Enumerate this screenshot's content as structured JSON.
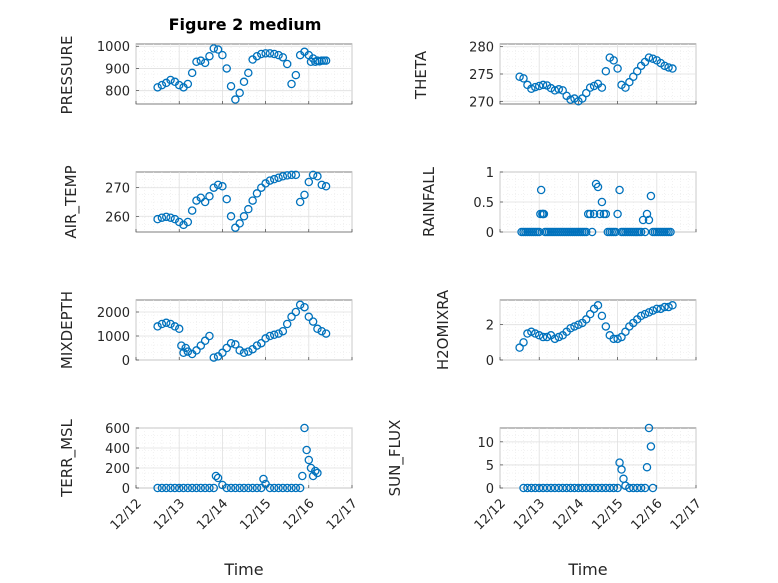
{
  "figure_title": "Figure 2 medium",
  "marker_color": "#0072BD",
  "x_axis": {
    "label": "Time",
    "ticks": [
      "12/12",
      "12/13",
      "12/14",
      "12/15",
      "12/16",
      "12/17"
    ]
  },
  "chart_data": [
    {
      "type": "scatter",
      "title": "Figure 2 medium",
      "xlabel": "",
      "ylabel": "PRESSURE",
      "ylim": [
        740,
        1010
      ],
      "yticks": [
        "800",
        "900",
        "1000"
      ],
      "yticks_values": [
        800,
        900,
        1000
      ],
      "x": [
        12.5,
        12.6,
        12.7,
        12.8,
        12.9,
        13.0,
        13.1,
        13.2,
        13.3,
        13.4,
        13.5,
        13.6,
        13.7,
        13.8,
        13.9,
        14.0,
        14.1,
        14.2,
        14.3,
        14.4,
        14.5,
        14.6,
        14.7,
        14.8,
        14.9,
        15.0,
        15.1,
        15.2,
        15.3,
        15.4,
        15.5,
        15.6,
        15.7,
        15.8,
        15.9,
        16.0,
        16.05,
        16.1,
        16.15,
        16.2,
        16.25,
        16.3,
        16.35,
        16.4
      ],
      "y": [
        815,
        825,
        835,
        848,
        840,
        825,
        815,
        830,
        880,
        930,
        935,
        925,
        955,
        990,
        985,
        960,
        900,
        820,
        760,
        790,
        840,
        880,
        940,
        955,
        965,
        968,
        968,
        965,
        960,
        950,
        920,
        830,
        870,
        960,
        975,
        960,
        930,
        945,
        930,
        935,
        932,
        935,
        935,
        935
      ]
    },
    {
      "type": "scatter",
      "title": "",
      "xlabel": "",
      "ylabel": "THETA",
      "ylim": [
        269.5,
        280.5
      ],
      "yticks": [
        "270",
        "275",
        "280"
      ],
      "yticks_values": [
        270,
        275,
        280
      ],
      "x": [
        12.5,
        12.6,
        12.7,
        12.8,
        12.9,
        13.0,
        13.1,
        13.2,
        13.3,
        13.4,
        13.5,
        13.6,
        13.7,
        13.8,
        13.9,
        14.0,
        14.1,
        14.2,
        14.3,
        14.4,
        14.5,
        14.6,
        14.7,
        14.8,
        14.9,
        15.0,
        15.1,
        15.2,
        15.3,
        15.4,
        15.5,
        15.6,
        15.7,
        15.8,
        15.9,
        16.0,
        16.1,
        16.2,
        16.3,
        16.4
      ],
      "y": [
        274.5,
        274.2,
        273.0,
        272.3,
        272.6,
        272.8,
        273.0,
        272.9,
        272.4,
        272.0,
        272.2,
        272.0,
        271.0,
        270.3,
        270.5,
        270.0,
        270.5,
        271.5,
        272.5,
        272.8,
        273.2,
        272.5,
        275.5,
        278.0,
        277.5,
        276.0,
        273.0,
        272.5,
        273.5,
        274.5,
        275.5,
        276.5,
        277.2,
        278.0,
        277.8,
        277.5,
        277.0,
        276.5,
        276.2,
        276.0
      ]
    },
    {
      "type": "scatter",
      "title": "",
      "xlabel": "",
      "ylabel": "AIR_TEMP",
      "ylim": [
        254.5,
        275.5
      ],
      "yticks": [
        "260",
        "270"
      ],
      "yticks_values": [
        260,
        270
      ],
      "x": [
        12.5,
        12.6,
        12.7,
        12.8,
        12.9,
        13.0,
        13.1,
        13.2,
        13.3,
        13.4,
        13.5,
        13.6,
        13.7,
        13.8,
        13.9,
        14.0,
        14.1,
        14.2,
        14.3,
        14.4,
        14.5,
        14.6,
        14.7,
        14.8,
        14.9,
        15.0,
        15.1,
        15.2,
        15.3,
        15.4,
        15.5,
        15.6,
        15.7,
        15.8,
        15.9,
        16.0,
        16.1,
        16.2,
        16.3,
        16.4
      ],
      "y": [
        259.0,
        259.5,
        259.8,
        259.5,
        259.0,
        258.0,
        257.0,
        258.0,
        262.0,
        265.5,
        266.5,
        265.0,
        267.0,
        270.0,
        271.0,
        270.5,
        266.0,
        260.0,
        256.0,
        257.5,
        260.0,
        262.5,
        265.5,
        268.0,
        270.0,
        271.5,
        272.5,
        273.0,
        273.5,
        274.0,
        274.3,
        274.5,
        274.5,
        265.0,
        267.5,
        272.0,
        274.5,
        274.0,
        271.0,
        270.5
      ]
    },
    {
      "type": "scatter",
      "title": "",
      "xlabel": "",
      "ylabel": "RAINFALL",
      "ylim": [
        0,
        1
      ],
      "yticks": [
        "0",
        "0.5",
        "1"
      ],
      "yticks_values": [
        0,
        0.5,
        1
      ],
      "x": [
        12.55,
        12.6,
        12.65,
        12.7,
        12.75,
        12.8,
        12.85,
        12.9,
        12.95,
        13.0,
        13.03,
        13.05,
        13.08,
        13.1,
        13.12,
        13.15,
        13.2,
        13.25,
        13.3,
        13.35,
        13.4,
        13.45,
        13.5,
        13.55,
        13.6,
        13.65,
        13.7,
        13.75,
        13.8,
        13.85,
        13.9,
        13.95,
        14.0,
        14.05,
        14.1,
        14.15,
        14.2,
        14.25,
        14.3,
        14.35,
        14.4,
        14.45,
        14.5,
        14.55,
        14.6,
        14.65,
        14.7,
        14.75,
        14.8,
        14.85,
        14.9,
        14.95,
        15.0,
        15.05,
        15.1,
        15.15,
        15.2,
        15.25,
        15.3,
        15.35,
        15.4,
        15.45,
        15.5,
        15.55,
        15.6,
        15.65,
        15.7,
        15.75,
        15.8,
        15.85,
        15.9,
        15.95,
        16.0,
        16.05,
        16.1,
        16.15,
        16.2,
        16.25,
        16.3,
        16.35
      ],
      "y": [
        0,
        0,
        0,
        0,
        0,
        0,
        0,
        0,
        0,
        0,
        0.3,
        0.7,
        0.3,
        0.3,
        0.3,
        0,
        0,
        0,
        0,
        0,
        0,
        0,
        0,
        0,
        0,
        0,
        0,
        0,
        0,
        0,
        0,
        0,
        0,
        0,
        0,
        0,
        0,
        0.3,
        0.3,
        0,
        0.3,
        0.8,
        0.75,
        0.3,
        0.5,
        0.3,
        0.3,
        0,
        0,
        0,
        0,
        0,
        0.3,
        0.7,
        0,
        0,
        0,
        0,
        0,
        0,
        0,
        0,
        0,
        0,
        0,
        0.2,
        0,
        0.3,
        0.2,
        0.6,
        0,
        0,
        0,
        0,
        0,
        0,
        0,
        0,
        0,
        0
      ]
    },
    {
      "type": "scatter",
      "title": "",
      "xlabel": "",
      "ylabel": "MIXDEPTH",
      "ylim": [
        0,
        2500
      ],
      "yticks": [
        "0",
        "1000",
        "2000"
      ],
      "yticks_values": [
        0,
        1000,
        2000
      ],
      "x": [
        12.5,
        12.6,
        12.7,
        12.8,
        12.9,
        13.0,
        13.05,
        13.1,
        13.15,
        13.2,
        13.3,
        13.4,
        13.5,
        13.6,
        13.7,
        13.8,
        13.9,
        14.0,
        14.1,
        14.2,
        14.3,
        14.4,
        14.5,
        14.6,
        14.7,
        14.8,
        14.9,
        15.0,
        15.1,
        15.2,
        15.3,
        15.4,
        15.5,
        15.6,
        15.7,
        15.8,
        15.9,
        16.0,
        16.1,
        16.2,
        16.3,
        16.4
      ],
      "y": [
        1400,
        1500,
        1550,
        1500,
        1400,
        1300,
        600,
        300,
        500,
        350,
        250,
        400,
        600,
        800,
        1000,
        100,
        150,
        300,
        500,
        700,
        650,
        400,
        300,
        350,
        450,
        600,
        700,
        900,
        1000,
        1050,
        1100,
        1200,
        1500,
        1800,
        2000,
        2300,
        2200,
        1800,
        1600,
        1300,
        1200,
        1100
      ]
    },
    {
      "type": "scatter",
      "title": "",
      "xlabel": "",
      "ylabel": "H2OMIXRA",
      "ylim": [
        0,
        3.4
      ],
      "yticks": [
        "0",
        "2"
      ],
      "yticks_values": [
        0,
        2
      ],
      "x": [
        12.5,
        12.6,
        12.7,
        12.8,
        12.9,
        13.0,
        13.1,
        13.2,
        13.3,
        13.4,
        13.5,
        13.6,
        13.7,
        13.8,
        13.9,
        14.0,
        14.1,
        14.2,
        14.3,
        14.4,
        14.5,
        14.6,
        14.7,
        14.8,
        14.9,
        15.0,
        15.1,
        15.2,
        15.3,
        15.4,
        15.5,
        15.6,
        15.7,
        15.8,
        15.9,
        16.0,
        16.1,
        16.2,
        16.3,
        16.4
      ],
      "y": [
        0.7,
        1.0,
        1.5,
        1.6,
        1.5,
        1.4,
        1.3,
        1.3,
        1.4,
        1.2,
        1.3,
        1.4,
        1.6,
        1.8,
        1.9,
        2.0,
        2.1,
        2.3,
        2.6,
        2.9,
        3.1,
        2.5,
        1.9,
        1.4,
        1.2,
        1.2,
        1.3,
        1.6,
        1.9,
        2.1,
        2.3,
        2.5,
        2.6,
        2.7,
        2.8,
        2.9,
        2.9,
        3.0,
        3.0,
        3.1
      ]
    },
    {
      "type": "scatter",
      "title": "",
      "xlabel": "",
      "ylabel": "TERR_MSL",
      "ylim": [
        0,
        600
      ],
      "yticks": [
        "0",
        "200",
        "400",
        "600"
      ],
      "yticks_values": [
        0,
        200,
        400,
        600
      ],
      "x": [
        12.5,
        12.6,
        12.7,
        12.8,
        12.9,
        13.0,
        13.1,
        13.2,
        13.3,
        13.4,
        13.5,
        13.6,
        13.7,
        13.8,
        13.85,
        13.9,
        14.0,
        14.1,
        14.2,
        14.3,
        14.4,
        14.5,
        14.6,
        14.7,
        14.8,
        14.9,
        14.95,
        15.0,
        15.1,
        15.2,
        15.3,
        15.4,
        15.5,
        15.6,
        15.7,
        15.8,
        15.85,
        15.9,
        15.95,
        16.0,
        16.05,
        16.1,
        16.15,
        16.2
      ],
      "y": [
        0,
        0,
        0,
        0,
        0,
        0,
        0,
        0,
        0,
        0,
        0,
        0,
        0,
        0,
        120,
        100,
        30,
        0,
        0,
        0,
        0,
        0,
        0,
        0,
        0,
        0,
        90,
        40,
        0,
        0,
        0,
        0,
        0,
        0,
        0,
        0,
        120,
        600,
        380,
        280,
        200,
        120,
        170,
        150
      ]
    },
    {
      "type": "scatter",
      "title": "",
      "xlabel": "",
      "ylabel": "SUN_FLUX",
      "ylim": [
        0,
        13
      ],
      "yticks": [
        "0",
        "5",
        "10"
      ],
      "yticks_values": [
        0,
        5,
        10
      ],
      "x": [
        12.6,
        12.7,
        12.8,
        12.9,
        13.0,
        13.1,
        13.2,
        13.3,
        13.4,
        13.5,
        13.6,
        13.7,
        13.8,
        13.9,
        14.0,
        14.1,
        14.2,
        14.3,
        14.4,
        14.5,
        14.6,
        14.7,
        14.8,
        14.9,
        15.0,
        15.05,
        15.1,
        15.15,
        15.2,
        15.3,
        15.4,
        15.5,
        15.6,
        15.7,
        15.75,
        15.8,
        15.85,
        15.9
      ],
      "y": [
        0,
        0,
        0,
        0,
        0,
        0,
        0,
        0,
        0,
        0,
        0,
        0,
        0,
        0,
        0,
        0,
        0,
        0,
        0,
        0,
        0,
        0,
        0,
        0,
        0,
        5.5,
        4.0,
        2.0,
        0.5,
        0,
        0,
        0,
        0,
        0,
        4.5,
        13.0,
        9.0,
        0
      ]
    }
  ]
}
